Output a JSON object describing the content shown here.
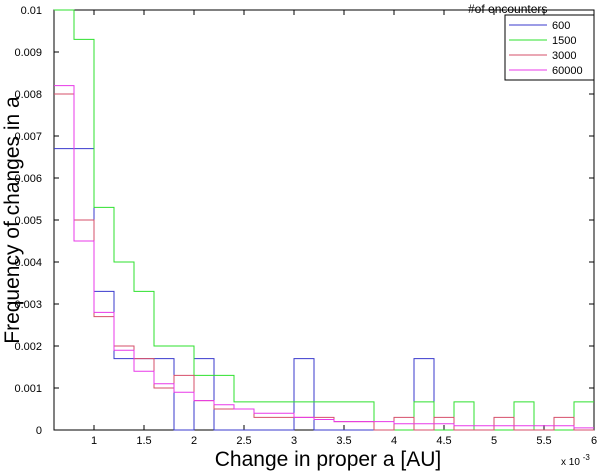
{
  "chart_data": {
    "type": "line",
    "xlabel": "Change in proper a [AU]",
    "ylabel": "Frequency of changes in a",
    "x_multiplier_label": "x 10",
    "x_multiplier_exp": "-3",
    "xlim": [
      0.0006,
      0.006
    ],
    "ylim": [
      0,
      0.01
    ],
    "x_ticks": [
      0.001,
      0.0015,
      0.002,
      0.0025,
      0.003,
      0.0035,
      0.004,
      0.0045,
      0.005,
      0.0055,
      0.006
    ],
    "x_tick_labels": [
      "1",
      "1.5",
      "2",
      "2.5",
      "3",
      "3.5",
      "4",
      "4.5",
      "5",
      "5.5",
      "6"
    ],
    "y_ticks": [
      0,
      0.001,
      0.002,
      0.003,
      0.004,
      0.005,
      0.006,
      0.007,
      0.008,
      0.009,
      0.01
    ],
    "y_tick_labels": [
      "0",
      "0.001",
      "0.002",
      "0.003",
      "0.004",
      "0.005",
      "0.006",
      "0.007",
      "0.008",
      "0.009",
      "0.01"
    ],
    "grid": false,
    "legend_title": "#of encounters",
    "legend_position": "top-right",
    "bin_edges": [
      0.0006,
      0.0008,
      0.001,
      0.0012,
      0.0014,
      0.0016,
      0.0018,
      0.002,
      0.0022,
      0.0024,
      0.0026,
      0.0028,
      0.003,
      0.0032,
      0.0034,
      0.0036,
      0.0038,
      0.004,
      0.0042,
      0.0044,
      0.0046,
      0.0048,
      0.005,
      0.0052,
      0.0054,
      0.0056,
      0.0058,
      0.006
    ],
    "series": [
      {
        "name": "600",
        "color": "#3a3acd",
        "values": [
          0.0067,
          0.0067,
          0.0033,
          0.0017,
          0.0017,
          0.0017,
          0.0,
          0.0017,
          0.0,
          0.0,
          0.0,
          0.0,
          0.0017,
          0.0,
          0.0,
          0.0,
          0.0,
          0.0,
          0.0017,
          0.0,
          0.0,
          0.0,
          0.0,
          0.0,
          0.0,
          0.0,
          0.0
        ]
      },
      {
        "name": "1500",
        "color": "#2ee02e",
        "values": [
          0.01,
          0.0093,
          0.0053,
          0.004,
          0.0033,
          0.002,
          0.002,
          0.0013,
          0.0013,
          0.00067,
          0.00067,
          0.00067,
          0.00067,
          0.00067,
          0.00067,
          0.00067,
          0.0,
          0.0,
          0.00067,
          0.0,
          0.00067,
          0.0,
          0.0,
          0.00067,
          0.0,
          0.0,
          0.00067
        ]
      },
      {
        "name": "3000",
        "color": "#d64f6a",
        "values": [
          0.008,
          0.005,
          0.0027,
          0.002,
          0.0017,
          0.001,
          0.0013,
          0.0007,
          0.0005,
          0.0005,
          0.0003,
          0.0003,
          0.0003,
          0.0003,
          0.0002,
          0.0002,
          0.0,
          0.0003,
          0.0,
          0.0003,
          0.0,
          0.0,
          0.0003,
          0.0,
          0.0,
          0.0003,
          0.0
        ]
      },
      {
        "name": "60000",
        "color": "#e838e8",
        "values": [
          0.0082,
          0.0045,
          0.0028,
          0.0019,
          0.0014,
          0.0011,
          0.0009,
          0.0007,
          0.0006,
          0.0005,
          0.0004,
          0.0004,
          0.0003,
          0.00025,
          0.0002,
          0.0002,
          0.0002,
          0.00015,
          0.00015,
          0.00015,
          0.0001,
          0.0001,
          0.0001,
          0.0001,
          0.0001,
          0.0001,
          5e-05
        ]
      }
    ]
  }
}
